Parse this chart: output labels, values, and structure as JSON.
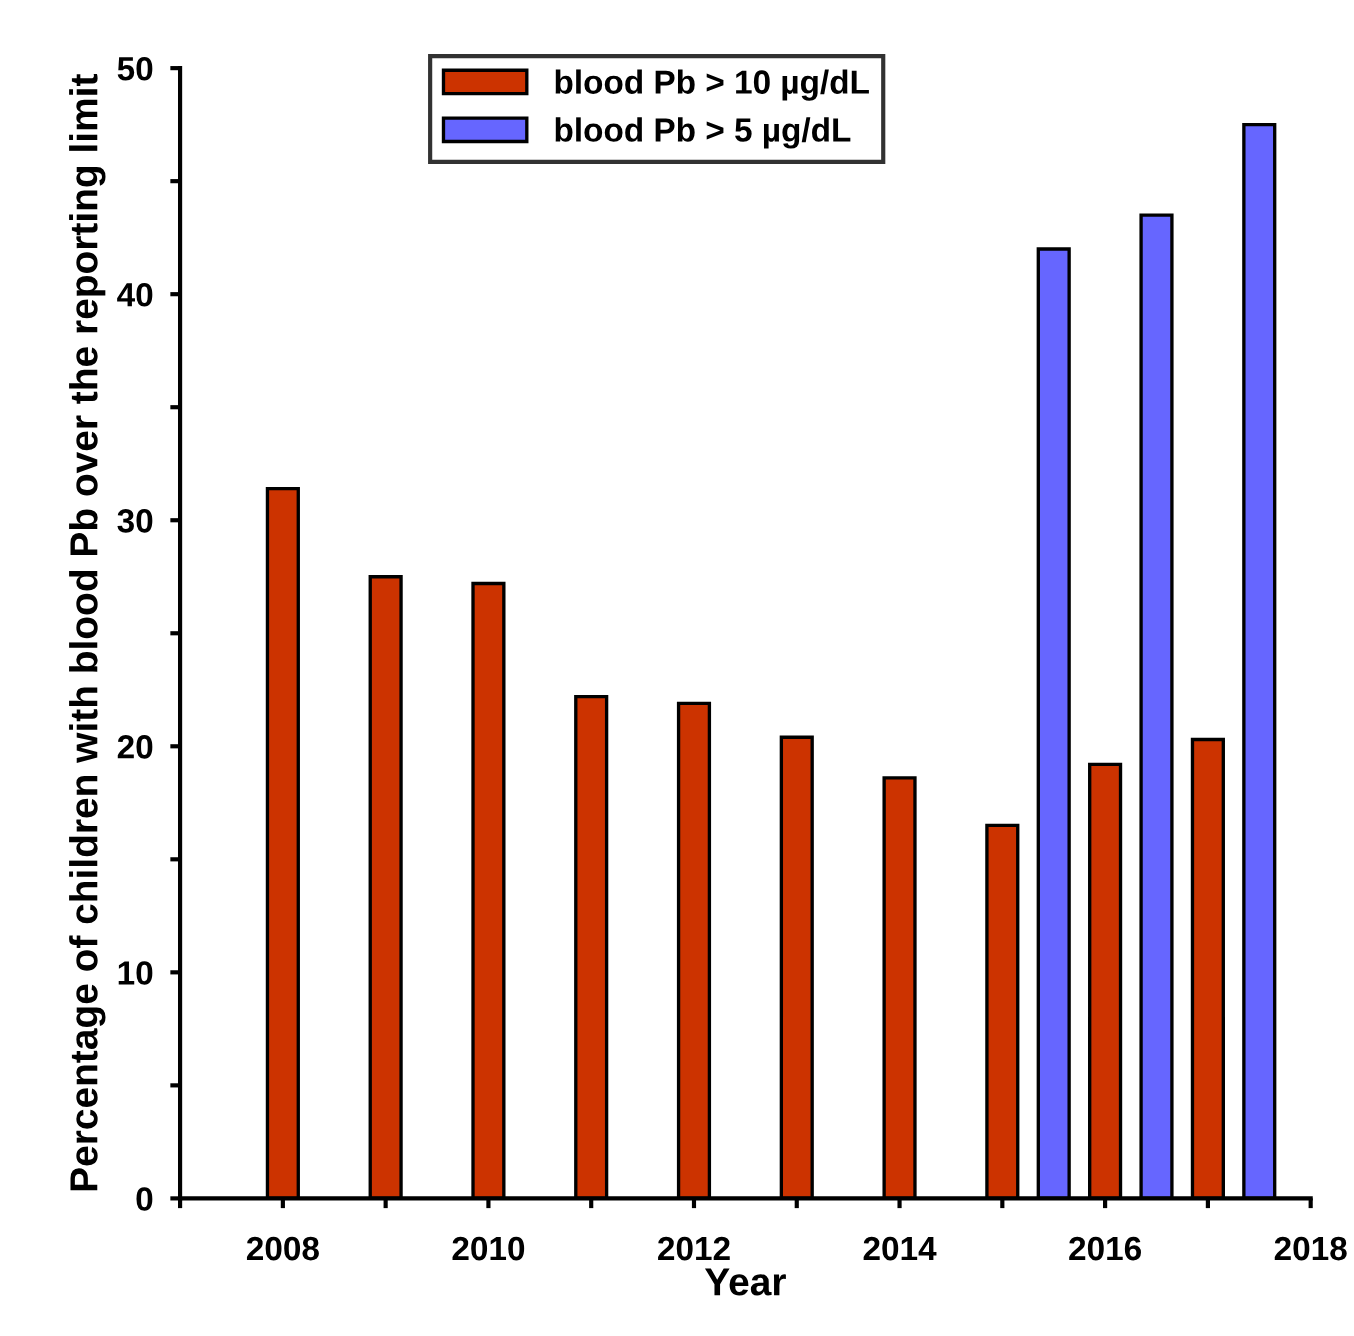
{
  "chart_data": {
    "type": "bar",
    "xlabel": "Year",
    "ylabel": "Percentage of children with blood Pb over the reporting limit",
    "series": [
      {
        "name": "blood Pb > 10 µg/dL",
        "color": "#cc3300",
        "x": [
          2008,
          2009,
          2010,
          2011,
          2012,
          2013,
          2014,
          2015,
          2016,
          2017
        ],
        "values": [
          31.4,
          27.5,
          27.2,
          22.2,
          21.9,
          20.4,
          18.6,
          16.5,
          19.2,
          20.3
        ]
      },
      {
        "name": "blood Pb > 5 µg/dL",
        "color": "#6666ff",
        "x": [
          2015.5,
          2016.5,
          2017.5
        ],
        "values": [
          42.0,
          43.5,
          47.5
        ]
      }
    ],
    "xlim": [
      2007,
      2018
    ],
    "ylim": [
      0,
      50
    ],
    "xticks": [
      {
        "value": 2007,
        "label": null
      },
      2008,
      {
        "value": 2009,
        "label": null
      },
      2010,
      {
        "value": 2011,
        "label": null
      },
      2012,
      {
        "value": 2013,
        "label": null
      },
      2014,
      {
        "value": 2015,
        "label": null
      },
      2016,
      {
        "value": 2017,
        "label": null
      },
      2018
    ],
    "yticks": [
      0,
      {
        "value": 5,
        "label": null
      },
      10,
      {
        "value": 15,
        "label": null
      },
      20,
      {
        "value": 25,
        "label": null
      },
      30,
      {
        "value": 35,
        "label": null
      },
      40,
      {
        "value": 45,
        "label": null
      },
      50
    ],
    "grid": false,
    "legend": "top"
  }
}
